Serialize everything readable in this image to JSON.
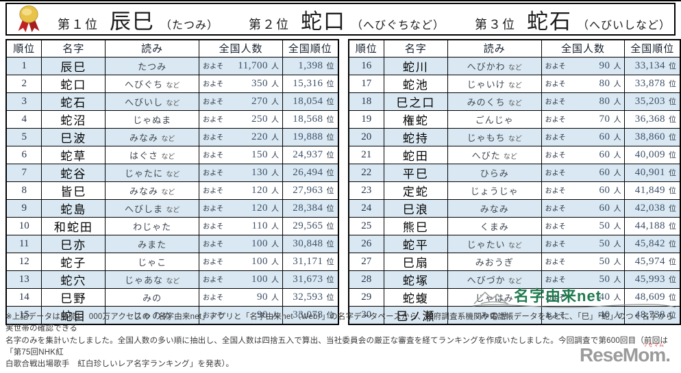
{
  "colors": {
    "row-blue": "#d9e8f2",
    "number-navy": "#3d5068",
    "logo-green": "#1e7a4e",
    "resemom-grey": "#9b9b9b",
    "resemom-red": "#d04040",
    "medal-gold": "#e8c34a",
    "medal-ribbon": "#c32222"
  },
  "banner": {
    "items": [
      {
        "label": "第１位",
        "name": "辰巳",
        "reading": "（たつみ）"
      },
      {
        "label": "第２位",
        "name": "蛇口",
        "reading": "（へびぐちなど）"
      },
      {
        "label": "第３位",
        "name": "蛇石",
        "reading": "（へびいしなど）"
      }
    ]
  },
  "table": {
    "headers": [
      "順位",
      "名字",
      "読み",
      "全国人数",
      "全国順位"
    ],
    "approx_prefix": "およそ",
    "person_unit": "人",
    "rank_unit": "位",
    "left_rows": [
      {
        "rank": "1",
        "name": "辰巳",
        "reading": "たつみ",
        "note": "",
        "count": "11,700",
        "nat_rank": "1,398"
      },
      {
        "rank": "2",
        "name": "蛇口",
        "reading": "へびぐち",
        "note": "など",
        "count": "350",
        "nat_rank": "15,316"
      },
      {
        "rank": "3",
        "name": "蛇石",
        "reading": "へびいし",
        "note": "など",
        "count": "270",
        "nat_rank": "18,054"
      },
      {
        "rank": "4",
        "name": "蛇沼",
        "reading": "じゃぬま",
        "note": "",
        "count": "250",
        "nat_rank": "18,568"
      },
      {
        "rank": "5",
        "name": "巳波",
        "reading": "みなみ",
        "note": "など",
        "count": "220",
        "nat_rank": "19,888"
      },
      {
        "rank": "6",
        "name": "蛇草",
        "reading": "はぐさ",
        "note": "など",
        "count": "150",
        "nat_rank": "24,937"
      },
      {
        "rank": "7",
        "name": "蛇谷",
        "reading": "じゃたに",
        "note": "など",
        "count": "130",
        "nat_rank": "26,494"
      },
      {
        "rank": "8",
        "name": "皆巳",
        "reading": "みなみ",
        "note": "など",
        "count": "120",
        "nat_rank": "27,963"
      },
      {
        "rank": "9",
        "name": "蛇島",
        "reading": "へびしま",
        "note": "など",
        "count": "120",
        "nat_rank": "28,384"
      },
      {
        "rank": "10",
        "name": "和蛇田",
        "reading": "わじゃた",
        "note": "",
        "count": "110",
        "nat_rank": "29,565"
      },
      {
        "rank": "11",
        "name": "巳亦",
        "reading": "みまた",
        "note": "",
        "count": "100",
        "nat_rank": "30,848"
      },
      {
        "rank": "12",
        "name": "蛇子",
        "reading": "じゃこ",
        "note": "",
        "count": "100",
        "nat_rank": "31,171"
      },
      {
        "rank": "13",
        "name": "蛇穴",
        "reading": "じゃあな",
        "note": "など",
        "count": "100",
        "nat_rank": "31,673"
      },
      {
        "rank": "14",
        "name": "巳野",
        "reading": "みの",
        "note": "",
        "count": "90",
        "nat_rank": "32,593"
      },
      {
        "rank": "15",
        "name": "蛇目",
        "reading": "じゃのめ",
        "note": "",
        "count": "90",
        "nat_rank": "33,078"
      }
    ],
    "right_rows": [
      {
        "rank": "16",
        "name": "蛇川",
        "reading": "へびかわ",
        "note": "など",
        "count": "90",
        "nat_rank": "33,134"
      },
      {
        "rank": "17",
        "name": "蛇池",
        "reading": "じゃいけ",
        "note": "など",
        "count": "80",
        "nat_rank": "33,878"
      },
      {
        "rank": "18",
        "name": "巳之口",
        "reading": "みのくち",
        "note": "など",
        "count": "80",
        "nat_rank": "35,203"
      },
      {
        "rank": "19",
        "name": "権蛇",
        "reading": "ごんじゃ",
        "note": "",
        "count": "70",
        "nat_rank": "36,368"
      },
      {
        "rank": "20",
        "name": "蛇持",
        "reading": "じゃもち",
        "note": "など",
        "count": "60",
        "nat_rank": "38,860"
      },
      {
        "rank": "21",
        "name": "蛇田",
        "reading": "へびた",
        "note": "など",
        "count": "60",
        "nat_rank": "40,009"
      },
      {
        "rank": "22",
        "name": "平巳",
        "reading": "ひらみ",
        "note": "",
        "count": "60",
        "nat_rank": "40,901"
      },
      {
        "rank": "23",
        "name": "定蛇",
        "reading": "じょうじゃ",
        "note": "",
        "count": "60",
        "nat_rank": "41,849"
      },
      {
        "rank": "24",
        "name": "巳浪",
        "reading": "みなみ",
        "note": "",
        "count": "60",
        "nat_rank": "42,038"
      },
      {
        "rank": "25",
        "name": "熊巳",
        "reading": "くまみ",
        "note": "",
        "count": "50",
        "nat_rank": "44,188"
      },
      {
        "rank": "26",
        "name": "蛇平",
        "reading": "じゃたい",
        "note": "など",
        "count": "50",
        "nat_rank": "45,842"
      },
      {
        "rank": "27",
        "name": "巳扇",
        "reading": "みおうぎ",
        "note": "",
        "count": "50",
        "nat_rank": "45,974"
      },
      {
        "rank": "28",
        "name": "蛇塚",
        "reading": "へびづか",
        "note": "など",
        "count": "50",
        "nat_rank": "45,993"
      },
      {
        "rank": "29",
        "name": "蛇蝮",
        "reading": "じゃはみ",
        "note": "",
        "count": "40",
        "nat_rank": "48,609"
      },
      {
        "rank": "30",
        "name": "巳ノ瀬",
        "reading": "みのせ",
        "note": "",
        "count": "40",
        "nat_rank": "48,738"
      }
    ]
  },
  "footer": {
    "logo_text": "名字由来net",
    "note_lines": [
      "※上記データは月間1，000万アクセスの「名字由来net」アプリと「名字由来net（Web）」の名字データベースから、政府調査系機関や電話帳データをもとに、「巳」「蛇」のつく名字から実世帯の確認できる",
      "名字のみを集計いたしました。全国人数の多い順に抽出し、全国人数は四捨五入で算出、当社委員会の厳正な審査を経てランキングを作成いたしました。今回調査で第600回目（前回は「第75回NHK紅",
      "白歌合戦出場歌手　紅白珍しいレア名字ランキング」を発表）。"
    ],
    "resemom_text": "ReseMom.",
    "resemom_ruby": "リセマム"
  }
}
